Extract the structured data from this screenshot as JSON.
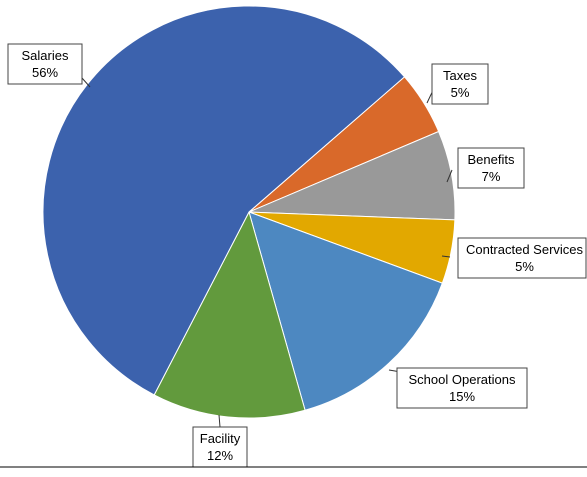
{
  "chart_data": {
    "type": "pie",
    "title": "",
    "start_angle_deg": 41,
    "direction": "clockwise",
    "slices": [
      {
        "label": "Taxes",
        "value": 5,
        "value_label": "5%",
        "color": "#D9692A"
      },
      {
        "label": "Benefits",
        "value": 7,
        "value_label": "7%",
        "color": "#999999"
      },
      {
        "label": "Contracted Services",
        "value": 5,
        "value_label": "5%",
        "color": "#E2A800"
      },
      {
        "label": "School Operations",
        "value": 15,
        "value_label": "15%",
        "color": "#4D88C1"
      },
      {
        "label": "Facility",
        "value": 12,
        "value_label": "12%",
        "color": "#629A3D"
      },
      {
        "label": "Salaries",
        "value": 56,
        "value_label": "56%",
        "color": "#3C62AD"
      }
    ],
    "legend": "none"
  }
}
